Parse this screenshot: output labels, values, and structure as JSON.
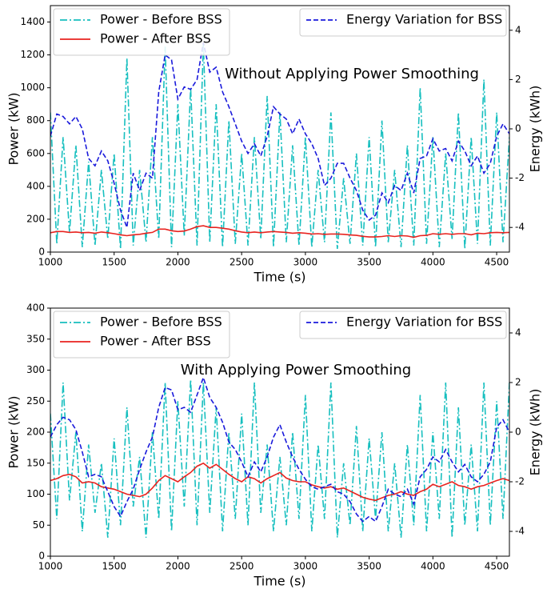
{
  "chart_data": [
    {
      "type": "line",
      "title": "Without Applying Power Smoothing",
      "xlabel": "Time (s)",
      "ylabel": "Power (kW)",
      "y2label": "Energy (kWh)",
      "x": [
        1000,
        1050,
        1100,
        1150,
        1200,
        1250,
        1300,
        1350,
        1400,
        1450,
        1500,
        1550,
        1600,
        1650,
        1700,
        1750,
        1800,
        1850,
        1900,
        1950,
        2000,
        2050,
        2100,
        2150,
        2200,
        2250,
        2300,
        2350,
        2400,
        2450,
        2500,
        2550,
        2600,
        2650,
        2700,
        2750,
        2800,
        2850,
        2900,
        2950,
        3000,
        3050,
        3100,
        3150,
        3200,
        3250,
        3300,
        3350,
        3400,
        3450,
        3500,
        3550,
        3600,
        3650,
        3700,
        3750,
        3800,
        3850,
        3900,
        3950,
        4000,
        4050,
        4100,
        4150,
        4200,
        4250,
        4300,
        4350,
        4400,
        4450,
        4500,
        4550,
        4600
      ],
      "series": [
        {
          "name": "Power - Before BSS",
          "color": "#17bfbf",
          "dash": "dashdot",
          "values": [
            850,
            50,
            700,
            120,
            650,
            30,
            550,
            40,
            500,
            80,
            600,
            20,
            1180,
            40,
            500,
            60,
            700,
            80,
            1250,
            30,
            900,
            100,
            1000,
            40,
            1270,
            60,
            900,
            30,
            800,
            50,
            600,
            40,
            700,
            80,
            950,
            30,
            850,
            60,
            650,
            40,
            700,
            30,
            500,
            60,
            850,
            20,
            450,
            50,
            600,
            40,
            700,
            30,
            800,
            60,
            500,
            30,
            650,
            40,
            1000,
            50,
            700,
            30,
            600,
            80,
            850,
            20,
            700,
            50,
            1050,
            40,
            850,
            60,
            700
          ]
        },
        {
          "name": "Power - After BSS",
          "color": "#e8231f",
          "dash": "solid",
          "values": [
            118,
            125,
            125,
            120,
            122,
            118,
            120,
            115,
            122,
            118,
            112,
            105,
            100,
            105,
            108,
            115,
            120,
            140,
            140,
            130,
            125,
            128,
            140,
            155,
            160,
            150,
            150,
            145,
            140,
            130,
            122,
            118,
            122,
            118,
            122,
            125,
            122,
            120,
            115,
            118,
            115,
            110,
            112,
            108,
            110,
            110,
            108,
            104,
            102,
            96,
            92,
            92,
            95,
            100,
            95,
            100,
            98,
            90,
            100,
            102,
            112,
            108,
            112,
            108,
            112,
            112,
            105,
            115,
            112,
            118,
            120,
            118,
            120
          ]
        },
        {
          "name": "Energy Variation for BSS",
          "color": "#1a1adb",
          "dash": "dashed",
          "axis": "y2",
          "values": [
            -0.3,
            0.6,
            0.5,
            0.2,
            0.5,
            0,
            -1.2,
            -1.5,
            -0.9,
            -1.3,
            -2.2,
            -3.3,
            -4.0,
            -1.8,
            -2.5,
            -1.8,
            -2.0,
            1.5,
            3.0,
            2.8,
            1.2,
            1.7,
            1.6,
            2.0,
            3.5,
            2.3,
            2.5,
            1.5,
            0.9,
            0.2,
            -0.5,
            -1.0,
            -0.6,
            -1.1,
            -0.3,
            0.9,
            0.6,
            0.4,
            -0.2,
            0.4,
            -0.2,
            -0.6,
            -1.2,
            -2.3,
            -2.0,
            -1.4,
            -1.4,
            -2.0,
            -2.5,
            -3.3,
            -3.7,
            -3.5,
            -2.6,
            -3.0,
            -2.3,
            -2.5,
            -1.8,
            -2.6,
            -1.2,
            -1.1,
            -0.4,
            -0.9,
            -0.8,
            -1.3,
            -0.5,
            -0.9,
            -1.5,
            -1.1,
            -1.8,
            -1.4,
            -0.3,
            0.2,
            -0.2
          ]
        }
      ],
      "xlim": [
        1000,
        4600
      ],
      "xticks": [
        1000,
        1500,
        2000,
        2500,
        3000,
        3500,
        4000,
        4500
      ],
      "ylim": [
        0,
        1500
      ],
      "yticks": [
        0,
        200,
        400,
        600,
        800,
        1000,
        1200,
        1400
      ],
      "y2lim": [
        -5,
        5
      ],
      "y2ticks": [
        -4,
        -2,
        0,
        2,
        4
      ]
    },
    {
      "type": "line",
      "title": "With Applying Power Smoothing",
      "xlabel": "Time (s)",
      "ylabel": "Power (kW)",
      "y2label": "Energy (kWh)",
      "x": [
        1000,
        1050,
        1100,
        1150,
        1200,
        1250,
        1300,
        1350,
        1400,
        1450,
        1500,
        1550,
        1600,
        1650,
        1700,
        1750,
        1800,
        1850,
        1900,
        1950,
        2000,
        2050,
        2100,
        2150,
        2200,
        2250,
        2300,
        2350,
        2400,
        2450,
        2500,
        2550,
        2600,
        2650,
        2700,
        2750,
        2800,
        2850,
        2900,
        2950,
        3000,
        3050,
        3100,
        3150,
        3200,
        3250,
        3300,
        3350,
        3400,
        3450,
        3500,
        3550,
        3600,
        3650,
        3700,
        3750,
        3800,
        3850,
        3900,
        3950,
        4000,
        4050,
        4100,
        4150,
        4200,
        4250,
        4300,
        4350,
        4400,
        4450,
        4500,
        4550,
        4600
      ],
      "series": [
        {
          "name": "Power - Before BSS",
          "color": "#17bfbf",
          "dash": "dashdot",
          "values": [
            230,
            60,
            280,
            90,
            200,
            40,
            180,
            70,
            150,
            30,
            190,
            50,
            240,
            80,
            160,
            30,
            200,
            60,
            280,
            40,
            250,
            80,
            285,
            50,
            280,
            70,
            240,
            40,
            200,
            60,
            230,
            50,
            280,
            70,
            180,
            40,
            160,
            50,
            200,
            60,
            260,
            40,
            180,
            60,
            280,
            30,
            150,
            50,
            210,
            40,
            190,
            60,
            200,
            40,
            150,
            30,
            180,
            50,
            260,
            40,
            200,
            60,
            280,
            30,
            240,
            50,
            180,
            40,
            280,
            50,
            250,
            60,
            280
          ]
        },
        {
          "name": "Power - After BSS",
          "color": "#e8231f",
          "dash": "solid",
          "values": [
            122,
            125,
            130,
            132,
            128,
            118,
            120,
            118,
            112,
            110,
            108,
            104,
            100,
            98,
            96,
            100,
            110,
            122,
            130,
            125,
            120,
            128,
            135,
            145,
            150,
            142,
            148,
            140,
            132,
            125,
            120,
            128,
            125,
            118,
            125,
            130,
            135,
            126,
            122,
            120,
            120,
            115,
            112,
            110,
            112,
            108,
            110,
            105,
            100,
            95,
            92,
            90,
            94,
            98,
            100,
            104,
            100,
            98,
            104,
            108,
            116,
            112,
            116,
            120,
            114,
            112,
            108,
            112,
            114,
            118,
            122,
            125,
            122
          ]
        },
        {
          "name": "Energy Variation for BSS",
          "color": "#1a1adb",
          "dash": "dashed",
          "axis": "y2",
          "values": [
            -0.2,
            0.3,
            0.6,
            0.5,
            0.1,
            -0.8,
            -1.8,
            -1.7,
            -1.8,
            -2.4,
            -3.0,
            -3.4,
            -2.8,
            -2.3,
            -1.5,
            -0.8,
            -0.2,
            1.0,
            1.8,
            1.7,
            0.9,
            1.0,
            0.8,
            1.5,
            2.2,
            1.4,
            1.0,
            0.4,
            -0.4,
            -0.7,
            -1.2,
            -1.8,
            -1.2,
            -1.6,
            -1.0,
            -0.2,
            0.3,
            -0.4,
            -1.0,
            -1.5,
            -1.9,
            -2.2,
            -2.3,
            -2.2,
            -2.1,
            -2.4,
            -2.5,
            -2.8,
            -3.3,
            -3.6,
            -3.4,
            -3.6,
            -3.0,
            -2.3,
            -2.5,
            -2.6,
            -2.3,
            -2.9,
            -1.8,
            -1.5,
            -1.0,
            -1.2,
            -0.7,
            -1.2,
            -1.6,
            -1.3,
            -1.8,
            -2.0,
            -1.7,
            -1.2,
            0.2,
            0.5,
            0.0
          ]
        }
      ],
      "xlim": [
        1000,
        4600
      ],
      "xticks": [
        1000,
        1500,
        2000,
        2500,
        3000,
        3500,
        4000,
        4500
      ],
      "ylim": [
        0,
        400
      ],
      "yticks": [
        0,
        50,
        100,
        150,
        200,
        250,
        300,
        350,
        400
      ],
      "y2lim": [
        -5,
        5
      ],
      "y2ticks": [
        -4,
        -2,
        0,
        2,
        4
      ]
    }
  ]
}
